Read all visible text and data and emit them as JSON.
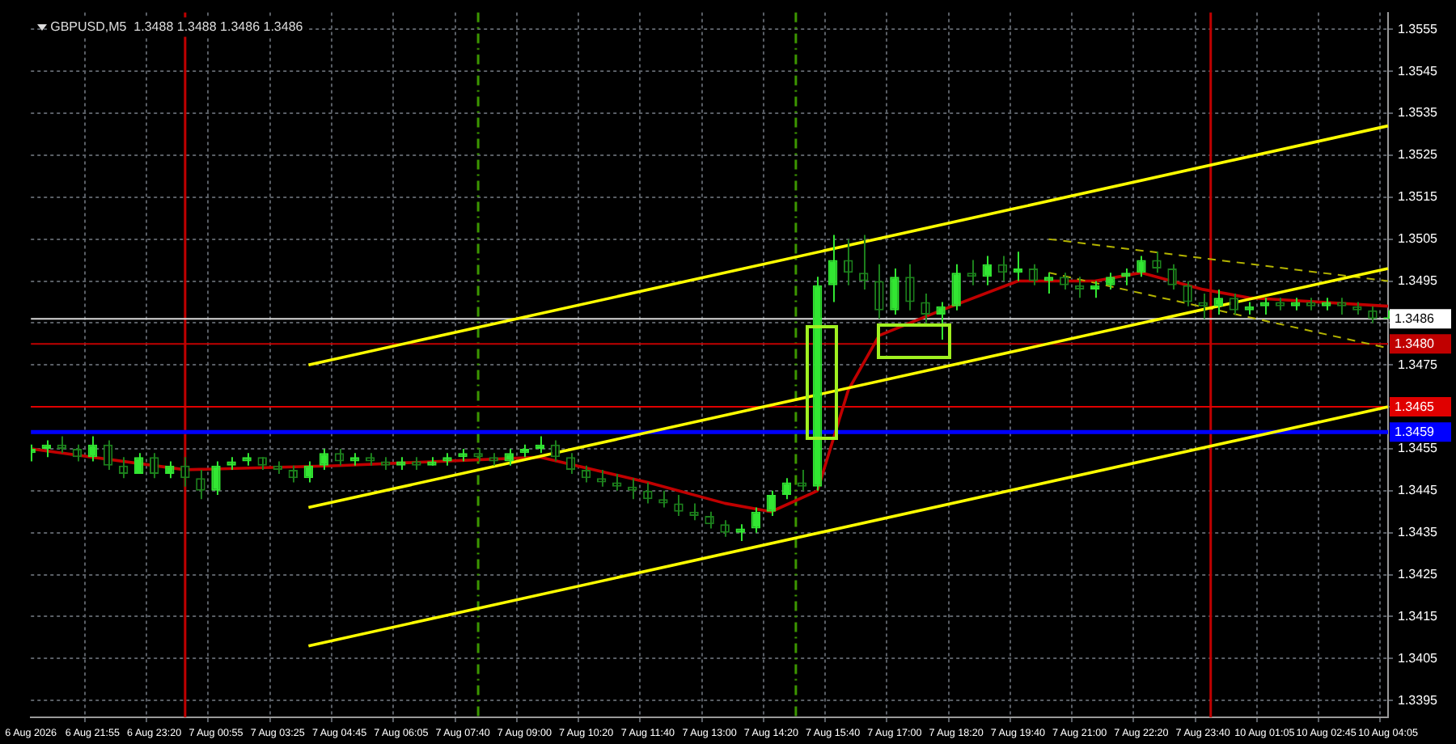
{
  "chart_data": {
    "type": "candlestick",
    "title": "GBPUSD,M5  1.3488 1.3488 1.3486 1.3486",
    "categories": [
      "6 Aug 2026",
      null,
      null,
      null,
      "6 Aug 21:55",
      null,
      null,
      null,
      "6 Aug 23:20",
      null,
      null,
      null,
      "7 Aug 00:55",
      null,
      null,
      null,
      "7 Aug 03:25",
      null,
      null,
      null,
      "7 Aug 04:45",
      null,
      null,
      null,
      "7 Aug 06:05",
      null,
      null,
      null,
      "7 Aug 07:40",
      null,
      null,
      null,
      "7 Aug 09:00",
      null,
      null,
      null,
      "7 Aug 10:20",
      null,
      null,
      null,
      "7 Aug 11:40",
      null,
      null,
      null,
      "7 Aug 13:00",
      null,
      null,
      null,
      "7 Aug 14:20",
      null,
      null,
      null,
      "7 Aug 15:40",
      null,
      null,
      null,
      "7 Aug 17:00",
      null,
      null,
      null,
      "7 Aug 18:20",
      null,
      null,
      null,
      "7 Aug 19:40",
      null,
      null,
      null,
      "7 Aug 21:00",
      null,
      null,
      null,
      "7 Aug 22:20",
      null,
      null,
      null,
      "7 Aug 23:40",
      null,
      null,
      null,
      "10 Aug 01:05",
      null,
      null,
      null,
      "10 Aug 02:45",
      null,
      null,
      null,
      "10 Aug 04:05"
    ],
    "series": [
      {
        "type": "line",
        "color": "#ffff00",
        "values": [
          null,
          null,
          null,
          null,
          null,
          null,
          null,
          null,
          null,
          null,
          null,
          null,
          null,
          null,
          null,
          null,
          null,
          null,
          1.3475,
          null,
          null,
          null,
          null,
          null,
          null,
          null,
          null,
          null,
          null,
          null,
          null,
          null,
          null,
          null,
          null,
          null,
          null,
          null,
          null,
          null,
          null,
          null,
          null,
          null,
          null,
          null,
          null,
          null,
          null,
          null,
          null,
          null,
          null,
          null,
          null,
          null,
          null,
          null,
          null,
          null,
          null,
          null,
          null,
          null,
          null,
          null,
          null,
          null,
          null,
          null,
          null,
          null,
          null,
          null,
          null,
          null,
          null,
          null,
          null,
          null,
          null,
          null,
          null,
          null,
          null,
          null,
          null,
          null,
          1.3532
        ]
      },
      {
        "type": "line",
        "color": "#ffff00",
        "values": [
          null,
          null,
          null,
          null,
          null,
          null,
          null,
          null,
          null,
          null,
          null,
          null,
          null,
          null,
          null,
          null,
          null,
          null,
          1.3441,
          null,
          null,
          null,
          null,
          null,
          null,
          null,
          null,
          null,
          null,
          null,
          null,
          null,
          null,
          null,
          null,
          null,
          null,
          null,
          null,
          null,
          null,
          null,
          null,
          null,
          null,
          null,
          null,
          null,
          null,
          null,
          null,
          null,
          null,
          null,
          null,
          null,
          null,
          null,
          null,
          null,
          null,
          null,
          null,
          null,
          null,
          null,
          null,
          null,
          null,
          null,
          null,
          null,
          null,
          null,
          null,
          null,
          null,
          null,
          null,
          null,
          null,
          null,
          null,
          null,
          null,
          null,
          null,
          null,
          1.3498
        ]
      },
      {
        "type": "line",
        "color": "#ffff00",
        "values": [
          null,
          null,
          null,
          null,
          null,
          null,
          null,
          null,
          null,
          null,
          null,
          null,
          null,
          null,
          null,
          null,
          null,
          null,
          1.3408,
          null,
          null,
          null,
          null,
          null,
          null,
          null,
          null,
          null,
          null,
          null,
          null,
          null,
          null,
          null,
          null,
          null,
          null,
          null,
          null,
          null,
          null,
          null,
          null,
          null,
          null,
          null,
          null,
          null,
          null,
          null,
          null,
          null,
          null,
          null,
          null,
          null,
          null,
          null,
          null,
          null,
          null,
          null,
          null,
          null,
          null,
          null,
          null,
          null,
          null,
          null,
          null,
          null,
          null,
          null,
          null,
          null,
          null,
          null,
          null,
          null,
          null,
          null,
          null,
          null,
          null,
          null,
          null,
          null,
          1.3465
        ]
      },
      {
        "type": "line",
        "color": "#b4b400",
        "line_style": "dashed",
        "values": [
          null,
          null,
          null,
          null,
          null,
          null,
          null,
          null,
          null,
          null,
          null,
          null,
          null,
          null,
          null,
          null,
          null,
          null,
          null,
          null,
          null,
          null,
          null,
          null,
          null,
          null,
          null,
          null,
          null,
          null,
          null,
          null,
          null,
          null,
          null,
          null,
          null,
          null,
          null,
          null,
          null,
          null,
          null,
          null,
          null,
          null,
          null,
          null,
          null,
          null,
          null,
          null,
          null,
          null,
          null,
          null,
          null,
          null,
          null,
          null,
          null,
          null,
          null,
          null,
          null,
          null,
          1.3505,
          null,
          null,
          null,
          null,
          null,
          null,
          null,
          null,
          null,
          null,
          null,
          null,
          null,
          null,
          null,
          null,
          null,
          null,
          null,
          null,
          null,
          1.3495
        ]
      },
      {
        "type": "line",
        "color": "#b4b400",
        "line_style": "dashed",
        "values": [
          null,
          null,
          null,
          null,
          null,
          null,
          null,
          null,
          null,
          null,
          null,
          null,
          null,
          null,
          null,
          null,
          null,
          null,
          null,
          null,
          null,
          null,
          null,
          null,
          null,
          null,
          null,
          null,
          null,
          null,
          null,
          null,
          null,
          null,
          null,
          null,
          null,
          null,
          null,
          null,
          null,
          null,
          null,
          null,
          null,
          null,
          null,
          null,
          null,
          null,
          null,
          null,
          null,
          null,
          null,
          null,
          null,
          null,
          null,
          null,
          null,
          null,
          null,
          null,
          null,
          null,
          1.3497,
          null,
          null,
          null,
          null,
          null,
          null,
          null,
          null,
          null,
          null,
          null,
          null,
          null,
          null,
          null,
          null,
          null,
          null,
          null,
          null,
          null,
          1.3479
        ]
      },
      {
        "type": "line",
        "color": "#c00000",
        "values": [
          1.3455,
          null,
          null,
          null,
          null,
          null,
          null,
          null,
          null,
          null,
          1.345,
          null,
          null,
          null,
          null,
          null,
          null,
          null,
          null,
          null,
          1.3451,
          null,
          null,
          null,
          null,
          null,
          null,
          null,
          null,
          null,
          null,
          null,
          null,
          1.3453,
          null,
          null,
          null,
          null,
          null,
          null,
          1.3447,
          null,
          null,
          null,
          null,
          1.3442,
          null,
          null,
          1.344,
          null,
          null,
          1.3445,
          null,
          1.3469,
          null,
          1.3482,
          null,
          null,
          null,
          1.3488,
          null,
          null,
          null,
          null,
          1.3495,
          null,
          null,
          null,
          null,
          1.3495,
          null,
          null,
          1.3497,
          null,
          null,
          null,
          1.3493,
          null,
          null,
          1.3491,
          null,
          null,
          null,
          null,
          null,
          null,
          null,
          null,
          1.3489
        ]
      },
      {
        "colors": [
          "#32e632",
          "#32e632",
          "#1c7f1c",
          "#1c7f1c",
          "#32e632",
          "#1c7f1c",
          "#1c7f1c",
          "#32e632",
          "#1c7f1c",
          "#32e632",
          "#1c7f1c",
          "#1c7f1c",
          "#32e632",
          "#32e632",
          "#32e632",
          "#1c7f1c",
          "#1c7f1c",
          "#1c7f1c",
          "#32e632",
          "#32e632",
          "#1c7f1c",
          "#32e632",
          "#1c7f1c",
          "#1c7f1c",
          "#32e632",
          "#1c7f1c",
          "#32e632",
          "#32e632",
          "#32e632",
          "#1c7f1c",
          "#1c7f1c",
          "#32e632",
          "#32e632",
          "#32e632",
          "#1c7f1c",
          "#1c7f1c",
          "#1c7f1c",
          "#1c7f1c",
          "#1c7f1c",
          "#1c7f1c",
          "#1c7f1c",
          "#1c7f1c",
          "#1c7f1c",
          "#1c7f1c",
          "#1c7f1c",
          "#1c7f1c",
          "#32e632",
          "#32e632",
          "#32e632",
          "#32e632",
          "#1c7f1c",
          "#32e632",
          "#32e632",
          "#1c7f1c",
          "#1c7f1c",
          "#1c7f1c",
          "#32e632",
          "#1c7f1c",
          "#1c7f1c",
          "#32e632",
          "#32e632",
          "#1c7f1c",
          "#32e632",
          "#1c7f1c",
          "#32e632",
          "#1c7f1c",
          "#32e632",
          "#1c7f1c",
          "#1c7f1c",
          "#32e632",
          "#32e632",
          "#32e632",
          "#32e632",
          "#1c7f1c",
          "#1c7f1c",
          "#1c7f1c",
          "#1c7f1c",
          "#32e632",
          "#1c7f1c",
          "#32e632",
          "#32e632",
          "#1c7f1c",
          "#32e632",
          "#1c7f1c",
          "#32e632",
          "#1c7f1c",
          "#1c7f1c",
          "#1c7f1c",
          "#32e632"
        ],
        "ohlc": [
          [
            1.3454,
            1.3456,
            1.3452,
            1.3455
          ],
          [
            1.3455,
            1.3457,
            1.3453,
            1.3456
          ],
          [
            1.3456,
            1.3458,
            1.3454,
            1.3455
          ],
          [
            1.3455,
            1.3456,
            1.3452,
            1.3453
          ],
          [
            1.3453,
            1.3458,
            1.3452,
            1.3456
          ],
          [
            1.3456,
            1.3457,
            1.345,
            1.3451
          ],
          [
            1.3451,
            1.3453,
            1.3448,
            1.3449
          ],
          [
            1.3449,
            1.3454,
            1.3449,
            1.3453
          ],
          [
            1.3453,
            1.3454,
            1.3448,
            1.3449
          ],
          [
            1.3449,
            1.3452,
            1.3448,
            1.3451
          ],
          [
            1.3451,
            1.3453,
            1.3446,
            1.3448
          ],
          [
            1.3448,
            1.345,
            1.3443,
            1.3445
          ],
          [
            1.3445,
            1.3452,
            1.3444,
            1.3451
          ],
          [
            1.3451,
            1.3453,
            1.345,
            1.3452
          ],
          [
            1.3452,
            1.3454,
            1.3451,
            1.3453
          ],
          [
            1.3453,
            1.3453,
            1.345,
            1.3451
          ],
          [
            1.3451,
            1.3452,
            1.3449,
            1.345
          ],
          [
            1.345,
            1.3451,
            1.3447,
            1.3448
          ],
          [
            1.3448,
            1.3452,
            1.3447,
            1.3451
          ],
          [
            1.3451,
            1.3455,
            1.345,
            1.3454
          ],
          [
            1.3454,
            1.3455,
            1.3451,
            1.3452
          ],
          [
            1.3452,
            1.3454,
            1.3451,
            1.3453
          ],
          [
            1.3453,
            1.3454,
            1.3451,
            1.3452
          ],
          [
            1.3452,
            1.3453,
            1.345,
            1.3451
          ],
          [
            1.3451,
            1.3453,
            1.345,
            1.3452
          ],
          [
            1.3452,
            1.3453,
            1.345,
            1.3451
          ],
          [
            1.3451,
            1.3453,
            1.3451,
            1.3452
          ],
          [
            1.3452,
            1.3454,
            1.3451,
            1.3453
          ],
          [
            1.3453,
            1.3455,
            1.3452,
            1.3454
          ],
          [
            1.3454,
            1.3455,
            1.3452,
            1.3453
          ],
          [
            1.3453,
            1.3454,
            1.3451,
            1.3452
          ],
          [
            1.3452,
            1.3455,
            1.3451,
            1.3454
          ],
          [
            1.3454,
            1.3456,
            1.3453,
            1.3455
          ],
          [
            1.3455,
            1.3458,
            1.3454,
            1.3456
          ],
          [
            1.3456,
            1.3457,
            1.3452,
            1.3453
          ],
          [
            1.3453,
            1.3454,
            1.3449,
            1.345
          ],
          [
            1.345,
            1.3451,
            1.3447,
            1.3448
          ],
          [
            1.3448,
            1.345,
            1.3446,
            1.3447
          ],
          [
            1.3447,
            1.3449,
            1.3445,
            1.3446
          ],
          [
            1.3446,
            1.3448,
            1.3443,
            1.3445
          ],
          [
            1.3445,
            1.3447,
            1.3442,
            1.3443
          ],
          [
            1.3443,
            1.3445,
            1.3441,
            1.3442
          ],
          [
            1.3442,
            1.3444,
            1.3439,
            1.344
          ],
          [
            1.344,
            1.3442,
            1.3438,
            1.3439
          ],
          [
            1.3439,
            1.344,
            1.3436,
            1.3437
          ],
          [
            1.3437,
            1.3438,
            1.3434,
            1.3435
          ],
          [
            1.3435,
            1.3437,
            1.3433,
            1.3436
          ],
          [
            1.3436,
            1.3441,
            1.3435,
            1.344
          ],
          [
            1.344,
            1.3445,
            1.3439,
            1.3444
          ],
          [
            1.3444,
            1.3448,
            1.3443,
            1.3447
          ],
          [
            1.3447,
            1.345,
            1.3445,
            1.3446
          ],
          [
            1.3446,
            1.3496,
            1.3445,
            1.3494
          ],
          [
            1.3494,
            1.3506,
            1.349,
            1.35
          ],
          [
            1.35,
            1.3505,
            1.3494,
            1.3497
          ],
          [
            1.3497,
            1.3506,
            1.3493,
            1.3495
          ],
          [
            1.3495,
            1.3499,
            1.3486,
            1.3488
          ],
          [
            1.3488,
            1.3498,
            1.3487,
            1.3496
          ],
          [
            1.3496,
            1.3499,
            1.3488,
            1.349
          ],
          [
            1.349,
            1.3492,
            1.3485,
            1.3487
          ],
          [
            1.3487,
            1.349,
            1.3481,
            1.3489
          ],
          [
            1.3489,
            1.3499,
            1.3488,
            1.3497
          ],
          [
            1.3497,
            1.35,
            1.3494,
            1.3496
          ],
          [
            1.3496,
            1.3501,
            1.3494,
            1.3499
          ],
          [
            1.3499,
            1.3501,
            1.3495,
            1.3497
          ],
          [
            1.3497,
            1.3502,
            1.3495,
            1.3498
          ],
          [
            1.3498,
            1.3499,
            1.3494,
            1.3495
          ],
          [
            1.3495,
            1.3497,
            1.3492,
            1.3496
          ],
          [
            1.3496,
            1.3497,
            1.3493,
            1.3494
          ],
          [
            1.3494,
            1.3496,
            1.3491,
            1.3493
          ],
          [
            1.3493,
            1.3495,
            1.3491,
            1.3494
          ],
          [
            1.3494,
            1.3497,
            1.3493,
            1.3496
          ],
          [
            1.3496,
            1.3498,
            1.3494,
            1.3497
          ],
          [
            1.3497,
            1.3501,
            1.3496,
            1.35
          ],
          [
            1.35,
            1.3502,
            1.3497,
            1.3498
          ],
          [
            1.3498,
            1.3499,
            1.3493,
            1.3494
          ],
          [
            1.3494,
            1.3495,
            1.3489,
            1.349
          ],
          [
            1.349,
            1.3492,
            1.3486,
            1.3489
          ],
          [
            1.3489,
            1.3493,
            1.3487,
            1.3491
          ],
          [
            1.3491,
            1.3492,
            1.3487,
            1.3488
          ],
          [
            1.3488,
            1.349,
            1.3487,
            1.3489
          ],
          [
            1.3489,
            1.3491,
            1.3487,
            1.349
          ],
          [
            1.349,
            1.3491,
            1.3488,
            1.3489
          ],
          [
            1.3489,
            1.3491,
            1.3488,
            1.349
          ],
          [
            1.349,
            1.3491,
            1.3488,
            1.3489
          ],
          [
            1.3489,
            1.3491,
            1.3488,
            1.349
          ],
          [
            1.349,
            1.3491,
            1.3487,
            1.3489
          ],
          [
            1.3489,
            1.349,
            1.3487,
            1.3488
          ],
          [
            1.3488,
            1.3489,
            1.3485,
            1.3486
          ],
          [
            1.3486,
            1.3488,
            1.3486,
            1.3486
          ]
        ]
      }
    ],
    "ylim": [
      1.3391,
      1.3559
    ],
    "yticks": [
      1.3395,
      1.3405,
      1.3415,
      1.3425,
      1.3435,
      1.3445,
      1.3455,
      {
        "value": 1.3465,
        "label": null
      },
      1.3475,
      {
        "value": 1.3485,
        "label": null
      },
      1.3495,
      1.3505,
      1.3515,
      1.3525,
      1.3535,
      1.3545,
      1.3555
    ],
    "grid": true,
    "legend": false,
    "ref_lines": [
      {
        "axis": "y",
        "value": 1.3486,
        "label": "1.3486",
        "color": "#d8d8d8",
        "line_style": "solid"
      },
      {
        "axis": "y",
        "value": 1.348,
        "label": "1.3480",
        "color": "#c00000",
        "line_style": "solid"
      },
      {
        "axis": "y",
        "value": 1.3465,
        "label": "1.3465",
        "color": "#e00000",
        "line_style": "solid"
      },
      {
        "axis": "y",
        "value": 1.3459,
        "label": "1.3459",
        "color": "#0000ff",
        "line_style": "solid"
      }
    ]
  }
}
